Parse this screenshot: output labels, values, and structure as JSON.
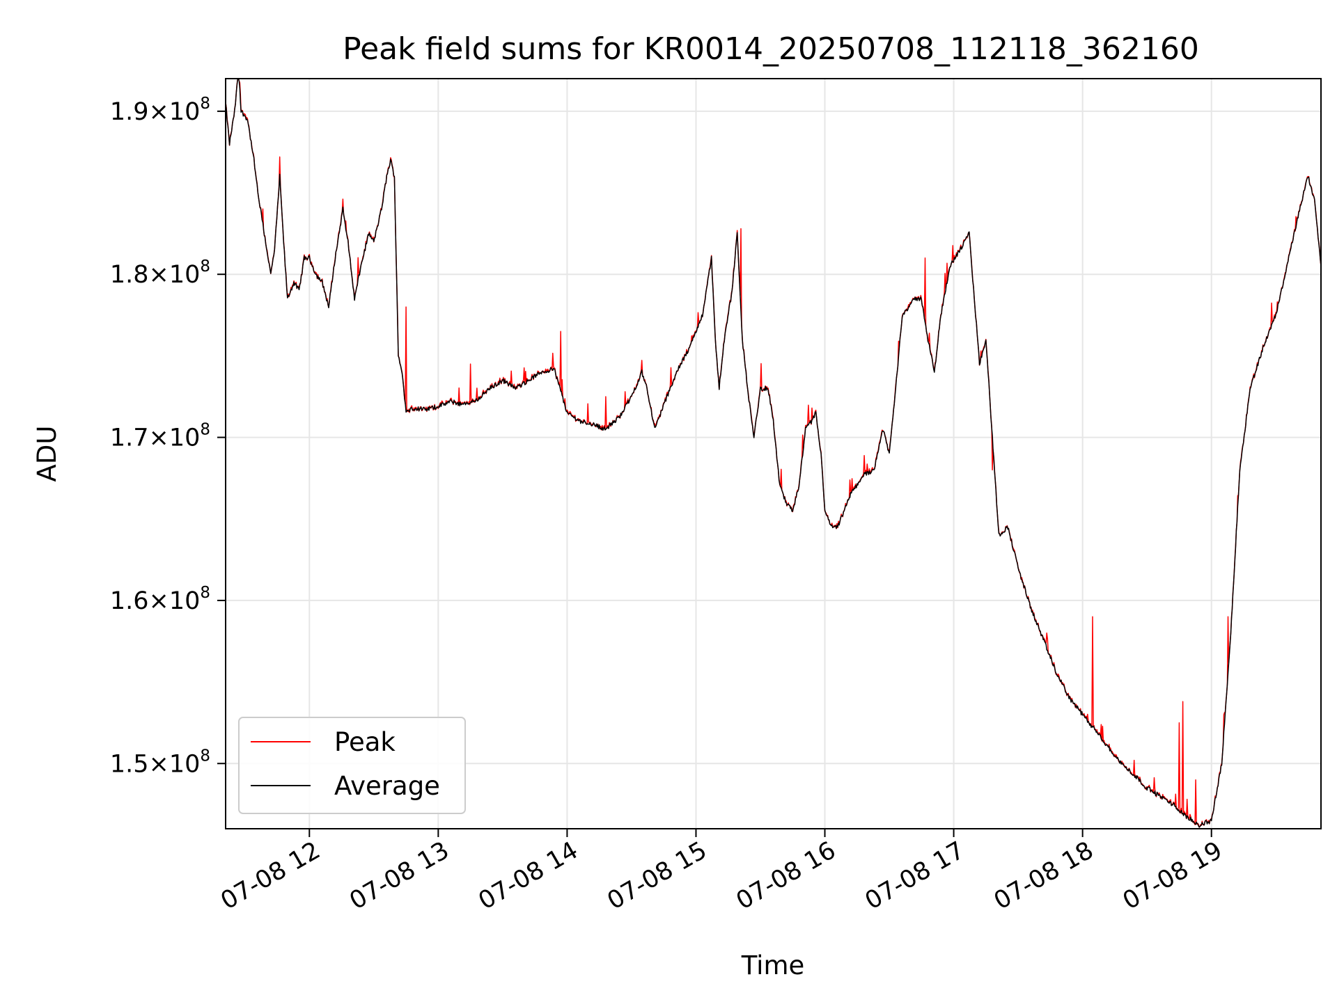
{
  "chart_data": {
    "type": "line",
    "title": "Peak field sums for KR0014_20250708_112118_362160",
    "xlabel": "Time",
    "ylabel": "ADU",
    "x_range_hours": [
      11.35,
      19.85
    ],
    "ylim": [
      146000000,
      192000000
    ],
    "grid": true,
    "legend_position": "lower-left",
    "x_ticks": [
      {
        "hour": 12,
        "label": "07-08 12"
      },
      {
        "hour": 13,
        "label": "07-08 13"
      },
      {
        "hour": 14,
        "label": "07-08 14"
      },
      {
        "hour": 15,
        "label": "07-08 15"
      },
      {
        "hour": 16,
        "label": "07-08 16"
      },
      {
        "hour": 17,
        "label": "07-08 17"
      },
      {
        "hour": 18,
        "label": "07-08 18"
      },
      {
        "hour": 19,
        "label": "07-08 19"
      }
    ],
    "y_ticks": [
      {
        "value": 150000000,
        "mantissa": "1.5",
        "exp": "8"
      },
      {
        "value": 160000000,
        "mantissa": "1.6",
        "exp": "8"
      },
      {
        "value": 170000000,
        "mantissa": "1.7",
        "exp": "8"
      },
      {
        "value": 180000000,
        "mantissa": "1.8",
        "exp": "8"
      },
      {
        "value": 190000000,
        "mantissa": "1.9",
        "exp": "8"
      }
    ],
    "series": [
      {
        "name": "Peak",
        "color": "#ff0000"
      },
      {
        "name": "Average",
        "color": "#000000"
      }
    ],
    "average_points": [
      [
        11.35,
        190500000.0
      ],
      [
        11.38,
        188000000.0
      ],
      [
        11.42,
        190000000.0
      ],
      [
        11.45,
        192500000.0
      ],
      [
        11.47,
        190000000.0
      ],
      [
        11.52,
        189500000.0
      ],
      [
        11.57,
        187000000.0
      ],
      [
        11.6,
        185000000.0
      ],
      [
        11.65,
        182500000.0
      ],
      [
        11.7,
        180000000.0
      ],
      [
        11.73,
        181500000.0
      ],
      [
        11.77,
        186000000.0
      ],
      [
        11.8,
        182000000.0
      ],
      [
        11.83,
        178500000.0
      ],
      [
        11.88,
        179500000.0
      ],
      [
        11.92,
        179000000.0
      ],
      [
        11.96,
        181000000.0
      ],
      [
        12.0,
        181000000.0
      ],
      [
        12.05,
        180000000.0
      ],
      [
        12.1,
        179500000.0
      ],
      [
        12.15,
        178000000.0
      ],
      [
        12.2,
        181000000.0
      ],
      [
        12.26,
        184000000.0
      ],
      [
        12.3,
        182000000.0
      ],
      [
        12.35,
        178500000.0
      ],
      [
        12.4,
        180500000.0
      ],
      [
        12.46,
        182500000.0
      ],
      [
        12.5,
        182000000.0
      ],
      [
        12.56,
        184000000.0
      ],
      [
        12.6,
        186000000.0
      ],
      [
        12.63,
        187000000.0
      ],
      [
        12.66,
        186000000.0
      ],
      [
        12.69,
        175000000.0
      ],
      [
        12.72,
        174000000.0
      ],
      [
        12.75,
        171500000.0
      ],
      [
        12.8,
        171800000.0
      ],
      [
        12.9,
        171700000.0
      ],
      [
        13.0,
        171900000.0
      ],
      [
        13.1,
        172200000.0
      ],
      [
        13.2,
        172000000.0
      ],
      [
        13.3,
        172300000.0
      ],
      [
        13.4,
        173000000.0
      ],
      [
        13.5,
        173500000.0
      ],
      [
        13.6,
        173000000.0
      ],
      [
        13.7,
        173500000.0
      ],
      [
        13.8,
        174000000.0
      ],
      [
        13.9,
        174200000.0
      ],
      [
        14.0,
        171500000.0
      ],
      [
        14.1,
        171000000.0
      ],
      [
        14.2,
        170800000.0
      ],
      [
        14.3,
        170500000.0
      ],
      [
        14.4,
        171200000.0
      ],
      [
        14.5,
        172500000.0
      ],
      [
        14.58,
        174000000.0
      ],
      [
        14.62,
        173000000.0
      ],
      [
        14.68,
        170500000.0
      ],
      [
        14.75,
        172000000.0
      ],
      [
        14.85,
        174000000.0
      ],
      [
        14.95,
        175500000.0
      ],
      [
        15.05,
        177500000.0
      ],
      [
        15.12,
        181000000.0
      ],
      [
        15.15,
        176000000.0
      ],
      [
        15.18,
        173000000.0
      ],
      [
        15.22,
        176000000.0
      ],
      [
        15.28,
        179000000.0
      ],
      [
        15.32,
        182500000.0
      ],
      [
        15.36,
        176000000.0
      ],
      [
        15.4,
        173000000.0
      ],
      [
        15.45,
        170000000.0
      ],
      [
        15.5,
        173000000.0
      ],
      [
        15.56,
        173000000.0
      ],
      [
        15.6,
        171000000.0
      ],
      [
        15.65,
        167000000.0
      ],
      [
        15.7,
        166000000.0
      ],
      [
        15.75,
        165500000.0
      ],
      [
        15.8,
        167000000.0
      ],
      [
        15.85,
        170500000.0
      ],
      [
        15.9,
        171000000.0
      ],
      [
        15.93,
        171500000.0
      ],
      [
        15.97,
        169000000.0
      ],
      [
        16.0,
        165500000.0
      ],
      [
        16.05,
        164500000.0
      ],
      [
        16.1,
        164500000.0
      ],
      [
        16.2,
        166500000.0
      ],
      [
        16.3,
        167700000.0
      ],
      [
        16.38,
        168000000.0
      ],
      [
        16.45,
        170500000.0
      ],
      [
        16.5,
        169000000.0
      ],
      [
        16.55,
        173000000.0
      ],
      [
        16.6,
        177500000.0
      ],
      [
        16.7,
        178500000.0
      ],
      [
        16.75,
        178500000.0
      ],
      [
        16.8,
        176000000.0
      ],
      [
        16.85,
        174000000.0
      ],
      [
        16.9,
        177500000.0
      ],
      [
        16.97,
        180500000.0
      ],
      [
        17.05,
        181500000.0
      ],
      [
        17.12,
        182500000.0
      ],
      [
        17.17,
        177500000.0
      ],
      [
        17.2,
        174500000.0
      ],
      [
        17.25,
        176000000.0
      ],
      [
        17.3,
        170000000.0
      ],
      [
        17.35,
        164000000.0
      ],
      [
        17.42,
        164500000.0
      ],
      [
        17.5,
        162000000.0
      ],
      [
        17.6,
        159500000.0
      ],
      [
        17.7,
        157500000.0
      ],
      [
        17.8,
        155500000.0
      ],
      [
        17.9,
        154000000.0
      ],
      [
        18.0,
        153000000.0
      ],
      [
        18.1,
        152000000.0
      ],
      [
        18.2,
        151000000.0
      ],
      [
        18.3,
        150000000.0
      ],
      [
        18.4,
        149300000.0
      ],
      [
        18.5,
        148500000.0
      ],
      [
        18.6,
        148000000.0
      ],
      [
        18.7,
        147500000.0
      ],
      [
        18.8,
        146800000.0
      ],
      [
        18.9,
        146200000.0
      ],
      [
        19.0,
        146500000.0
      ],
      [
        19.08,
        150000000.0
      ],
      [
        19.15,
        158000000.0
      ],
      [
        19.22,
        168000000.0
      ],
      [
        19.3,
        173000000.0
      ],
      [
        19.4,
        175500000.0
      ],
      [
        19.5,
        177500000.0
      ],
      [
        19.6,
        181000000.0
      ],
      [
        19.7,
        184500000.0
      ],
      [
        19.75,
        186000000.0
      ],
      [
        19.8,
        184500000.0
      ],
      [
        19.85,
        180500000.0
      ]
    ],
    "peak_spikes": [
      [
        11.77,
        187200000.0
      ],
      [
        12.75,
        178000000.0
      ],
      [
        13.25,
        174500000.0
      ],
      [
        13.95,
        176500000.0
      ],
      [
        14.3,
        172500000.0
      ],
      [
        14.45,
        172800000.0
      ],
      [
        15.35,
        182800000.0
      ],
      [
        15.9,
        171800000.0
      ],
      [
        16.78,
        181000000.0
      ],
      [
        17.3,
        168000000.0
      ],
      [
        17.72,
        158000000.0
      ],
      [
        18.08,
        159000000.0
      ],
      [
        18.4,
        150200000.0
      ],
      [
        18.75,
        152500000.0
      ],
      [
        18.78,
        153800000.0
      ],
      [
        18.88,
        149000000.0
      ],
      [
        19.13,
        159000000.0
      ]
    ]
  }
}
